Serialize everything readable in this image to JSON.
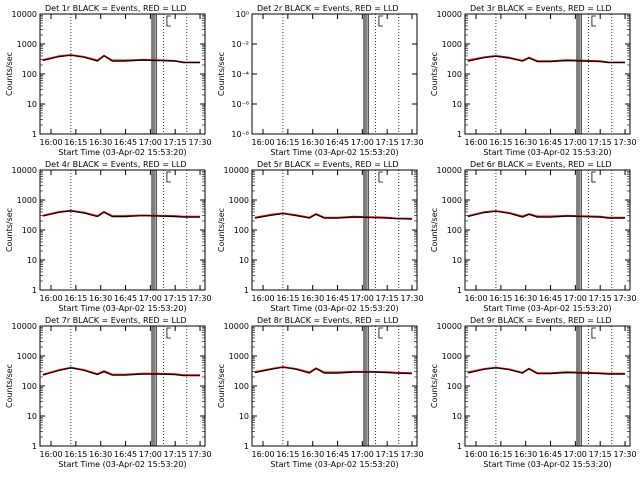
{
  "figure": {
    "x_title": "Start Time (03-Apr-02 15:53:20)",
    "y_title": "Counts/sec",
    "x_ticks": [
      "16:00",
      "16:15",
      "16:30",
      "16:45",
      "17:00",
      "17:15",
      "17:30"
    ],
    "y_ticks_log": [
      "1",
      "10",
      "100",
      "1000",
      "10000"
    ]
  },
  "chart_data": [
    {
      "type": "line",
      "title": "Det 1r BLACK = Events, RED = LLD",
      "xlabel": "Start Time (03-Apr-02 15:53:20)",
      "ylabel": "Counts/sec",
      "x_ticks": [
        "16:00",
        "16:15",
        "16:30",
        "16:45",
        "17:00",
        "17:15",
        "17:30"
      ],
      "y_scale": "log",
      "ylim": [
        1,
        10000
      ],
      "x": [
        "15:55",
        "16:05",
        "16:12",
        "16:20",
        "16:28",
        "16:32",
        "16:37",
        "16:45",
        "16:55",
        "17:05",
        "17:15",
        "17:20",
        "17:30"
      ],
      "series": [
        {
          "name": "Events",
          "color": "#000000",
          "values": [
            280,
            380,
            420,
            360,
            270,
            400,
            270,
            270,
            290,
            280,
            270,
            240,
            240
          ]
        },
        {
          "name": "LLD",
          "color": "#ff0000",
          "values": [
            300,
            400,
            440,
            380,
            290,
            420,
            290,
            290,
            305,
            295,
            280,
            250,
            250
          ]
        }
      ]
    },
    {
      "type": "line",
      "title": "Det 2r BLACK = Events, RED = LLD",
      "xlabel": "Start Time (03-Apr-02 15:53:20)",
      "ylabel": "Counts/sec",
      "x_ticks": [
        "16:00",
        "16:15",
        "16:30",
        "16:45",
        "17:00",
        "17:15",
        "17:30"
      ],
      "y_scale": "log",
      "y_ticks": [
        "10⁰",
        "10⁻²",
        "10⁻⁴",
        "10⁻⁶",
        "10⁻⁸"
      ],
      "ylim": [
        1e-08,
        1
      ],
      "series": []
    },
    {
      "type": "line",
      "title": "Det 3r BLACK = Events, RED = LLD",
      "xlabel": "Start Time (03-Apr-02 15:53:20)",
      "ylabel": "Counts/sec",
      "x_ticks": [
        "16:00",
        "16:15",
        "16:30",
        "16:45",
        "17:00",
        "17:15",
        "17:30"
      ],
      "y_scale": "log",
      "ylim": [
        1,
        10000
      ],
      "x": [
        "15:55",
        "16:05",
        "16:12",
        "16:20",
        "16:28",
        "16:32",
        "16:37",
        "16:45",
        "16:55",
        "17:05",
        "17:15",
        "17:20",
        "17:30"
      ],
      "series": [
        {
          "name": "Events",
          "color": "#000000",
          "values": [
            270,
            350,
            390,
            340,
            270,
            340,
            260,
            260,
            280,
            270,
            260,
            240,
            240
          ]
        },
        {
          "name": "LLD",
          "color": "#ff0000",
          "values": [
            290,
            370,
            410,
            360,
            285,
            360,
            275,
            275,
            295,
            285,
            275,
            250,
            250
          ]
        }
      ]
    },
    {
      "type": "line",
      "title": "Det 4r BLACK = Events, RED = LLD",
      "xlabel": "Start Time (03-Apr-02 15:53:20)",
      "ylabel": "Counts/sec",
      "x_ticks": [
        "16:00",
        "16:15",
        "16:30",
        "16:45",
        "17:00",
        "17:15",
        "17:30"
      ],
      "y_scale": "log",
      "ylim": [
        1,
        10000
      ],
      "x": [
        "15:55",
        "16:05",
        "16:12",
        "16:20",
        "16:28",
        "16:32",
        "16:37",
        "16:45",
        "16:55",
        "17:05",
        "17:15",
        "17:20",
        "17:30"
      ],
      "series": [
        {
          "name": "Events",
          "color": "#000000",
          "values": [
            290,
            390,
            430,
            370,
            280,
            390,
            280,
            280,
            300,
            290,
            280,
            270,
            270
          ]
        },
        {
          "name": "LLD",
          "color": "#ff0000",
          "values": [
            310,
            410,
            450,
            390,
            300,
            410,
            300,
            300,
            315,
            305,
            300,
            285,
            285
          ]
        }
      ]
    },
    {
      "type": "line",
      "title": "Det 5r BLACK = Events, RED = LLD",
      "xlabel": "Start Time (03-Apr-02 15:53:20)",
      "ylabel": "Counts/sec",
      "x_ticks": [
        "16:00",
        "16:15",
        "16:30",
        "16:45",
        "17:00",
        "17:15",
        "17:30"
      ],
      "y_scale": "log",
      "ylim": [
        1,
        10000
      ],
      "x": [
        "15:55",
        "16:05",
        "16:12",
        "16:20",
        "16:28",
        "16:32",
        "16:37",
        "16:45",
        "16:55",
        "17:05",
        "17:15",
        "17:20",
        "17:30"
      ],
      "series": [
        {
          "name": "Events",
          "color": "#000000",
          "values": [
            250,
            310,
            350,
            300,
            250,
            330,
            250,
            250,
            270,
            260,
            250,
            240,
            230
          ]
        },
        {
          "name": "LLD",
          "color": "#ff0000",
          "values": [
            265,
            330,
            370,
            320,
            265,
            350,
            265,
            265,
            285,
            275,
            265,
            250,
            245
          ]
        }
      ]
    },
    {
      "type": "line",
      "title": "Det 6r BLACK = Events, RED = LLD",
      "xlabel": "Start Time (03-Apr-02 15:53:20)",
      "ylabel": "Counts/sec",
      "x_ticks": [
        "16:00",
        "16:15",
        "16:30",
        "16:45",
        "17:00",
        "17:15",
        "17:30"
      ],
      "y_scale": "log",
      "ylim": [
        1,
        10000
      ],
      "x": [
        "15:55",
        "16:05",
        "16:12",
        "16:20",
        "16:28",
        "16:32",
        "16:37",
        "16:45",
        "16:55",
        "17:05",
        "17:15",
        "17:20",
        "17:30"
      ],
      "series": [
        {
          "name": "Events",
          "color": "#000000",
          "values": [
            280,
            380,
            420,
            360,
            270,
            330,
            270,
            270,
            290,
            280,
            270,
            250,
            250
          ]
        },
        {
          "name": "LLD",
          "color": "#ff0000",
          "values": [
            300,
            400,
            440,
            380,
            290,
            350,
            290,
            290,
            305,
            295,
            285,
            265,
            265
          ]
        }
      ]
    },
    {
      "type": "line",
      "title": "Det 7r BLACK = Events, RED = LLD",
      "xlabel": "Start Time (03-Apr-02 15:53:20)",
      "ylabel": "Counts/sec",
      "x_ticks": [
        "16:00",
        "16:15",
        "16:30",
        "16:45",
        "17:00",
        "17:15",
        "17:30"
      ],
      "y_scale": "log",
      "ylim": [
        1,
        10000
      ],
      "x": [
        "15:55",
        "16:05",
        "16:12",
        "16:20",
        "16:28",
        "16:32",
        "16:37",
        "16:45",
        "16:55",
        "17:05",
        "17:15",
        "17:20",
        "17:30"
      ],
      "series": [
        {
          "name": "Events",
          "color": "#000000",
          "values": [
            230,
            330,
            400,
            330,
            240,
            300,
            230,
            230,
            250,
            250,
            240,
            220,
            220
          ]
        },
        {
          "name": "LLD",
          "color": "#ff0000",
          "values": [
            245,
            350,
            420,
            350,
            255,
            320,
            245,
            245,
            265,
            265,
            255,
            235,
            235
          ]
        }
      ]
    },
    {
      "type": "line",
      "title": "Det 8r BLACK = Events, RED = LLD",
      "xlabel": "Start Time (03-Apr-02 15:53:20)",
      "ylabel": "Counts/sec",
      "x_ticks": [
        "16:00",
        "16:15",
        "16:30",
        "16:45",
        "17:00",
        "17:15",
        "17:30"
      ],
      "y_scale": "log",
      "ylim": [
        1,
        10000
      ],
      "x": [
        "15:55",
        "16:05",
        "16:12",
        "16:20",
        "16:28",
        "16:32",
        "16:37",
        "16:45",
        "16:55",
        "17:05",
        "17:15",
        "17:20",
        "17:30"
      ],
      "series": [
        {
          "name": "Events",
          "color": "#000000",
          "values": [
            280,
            360,
            420,
            360,
            270,
            380,
            270,
            270,
            290,
            290,
            280,
            270,
            260
          ]
        },
        {
          "name": "LLD",
          "color": "#ff0000",
          "values": [
            300,
            380,
            440,
            380,
            290,
            400,
            290,
            290,
            305,
            305,
            295,
            285,
            275
          ]
        }
      ]
    },
    {
      "type": "line",
      "title": "Det 9r BLACK = Events, RED = LLD",
      "xlabel": "Start Time (03-Apr-02 15:53:20)",
      "ylabel": "Counts/sec",
      "x_ticks": [
        "16:00",
        "16:15",
        "16:30",
        "16:45",
        "17:00",
        "17:15",
        "17:30"
      ],
      "y_scale": "log",
      "ylim": [
        1,
        10000
      ],
      "x": [
        "15:55",
        "16:05",
        "16:12",
        "16:20",
        "16:28",
        "16:32",
        "16:37",
        "16:45",
        "16:55",
        "17:05",
        "17:15",
        "17:20",
        "17:30"
      ],
      "series": [
        {
          "name": "Events",
          "color": "#000000",
          "values": [
            270,
            360,
            400,
            350,
            270,
            370,
            260,
            260,
            280,
            270,
            260,
            250,
            250
          ]
        },
        {
          "name": "LLD",
          "color": "#ff0000",
          "values": [
            290,
            380,
            420,
            370,
            285,
            390,
            275,
            275,
            295,
            285,
            275,
            265,
            265
          ]
        }
      ]
    }
  ]
}
